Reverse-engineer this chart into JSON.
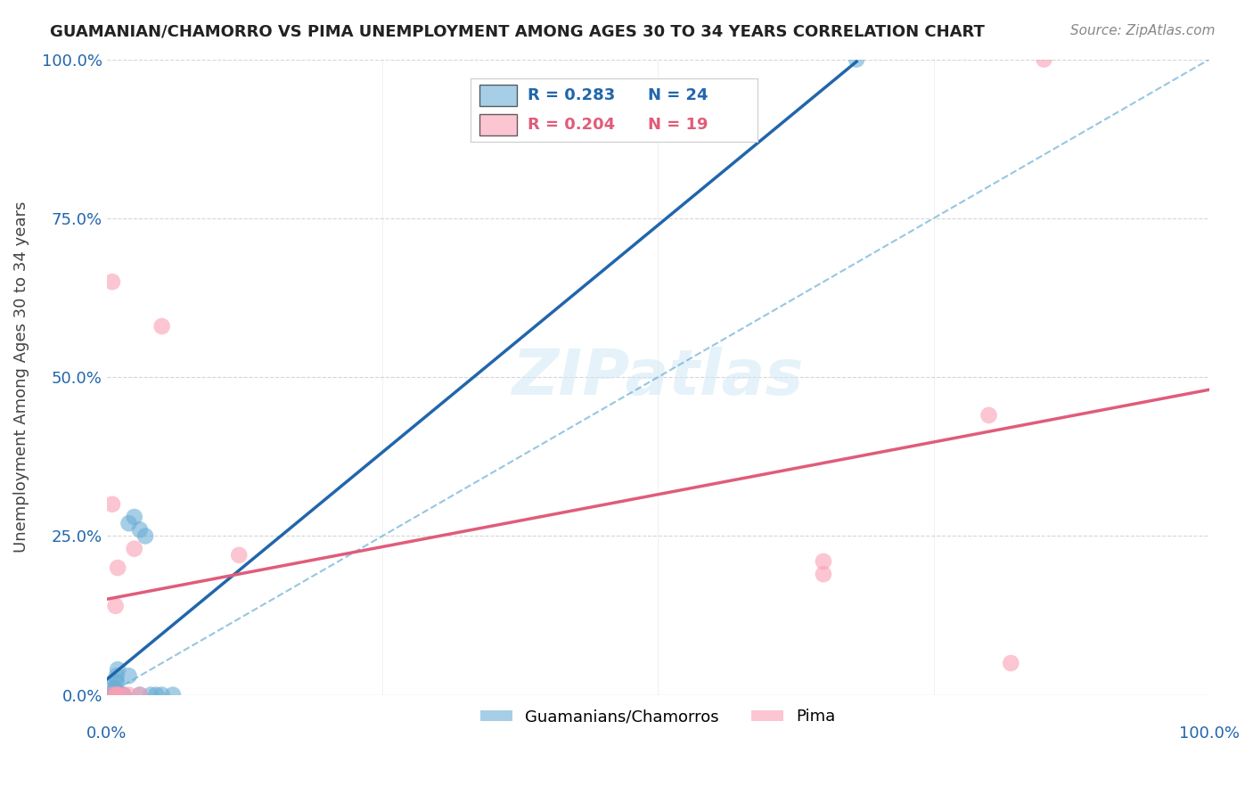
{
  "title": "GUAMANIAN/CHAMORRO VS PIMA UNEMPLOYMENT AMONG AGES 30 TO 34 YEARS CORRELATION CHART",
  "source": "Source: ZipAtlas.com",
  "ylabel": "Unemployment Among Ages 30 to 34 years",
  "ytick_labels": [
    "0.0%",
    "25.0%",
    "50.0%",
    "75.0%",
    "100.0%"
  ],
  "ytick_values": [
    0,
    0.25,
    0.5,
    0.75,
    1.0
  ],
  "legend_blue_R": "0.283",
  "legend_blue_N": "24",
  "legend_pink_R": "0.204",
  "legend_pink_N": "19",
  "legend_label_blue": "Guamanians/Chamorros",
  "legend_label_pink": "Pima",
  "blue_color": "#6baed6",
  "pink_color": "#fa9fb5",
  "blue_line_color": "#2166ac",
  "pink_line_color": "#e05c7a",
  "dashed_line_color": "#6baed6",
  "blue_scatter_x": [
    0.005,
    0.005,
    0.005,
    0.005,
    0.005,
    0.008,
    0.008,
    0.009,
    0.009,
    0.01,
    0.01,
    0.015,
    0.015,
    0.02,
    0.02,
    0.025,
    0.03,
    0.03,
    0.035,
    0.04,
    0.045,
    0.05,
    0.06,
    0.68
  ],
  "blue_scatter_y": [
    0.0,
    0.0,
    0.0,
    0.0,
    0.01,
    0.01,
    0.02,
    0.02,
    0.03,
    0.0,
    0.04,
    0.0,
    0.0,
    0.03,
    0.27,
    0.28,
    0.0,
    0.26,
    0.25,
    0.0,
    0.0,
    0.0,
    0.0,
    1.0
  ],
  "pink_scatter_x": [
    0.005,
    0.005,
    0.005,
    0.008,
    0.008,
    0.01,
    0.01,
    0.015,
    0.02,
    0.025,
    0.03,
    0.05,
    0.12,
    0.65,
    0.65,
    0.8,
    0.82,
    0.85,
    0.01
  ],
  "pink_scatter_y": [
    0.0,
    0.3,
    0.65,
    0.0,
    0.14,
    0.0,
    0.2,
    0.0,
    0.0,
    0.23,
    0.0,
    0.58,
    0.22,
    0.19,
    0.21,
    0.44,
    0.05,
    1.0,
    0.0
  ],
  "xlim": [
    0,
    1.0
  ],
  "ylim": [
    0,
    1.0
  ]
}
